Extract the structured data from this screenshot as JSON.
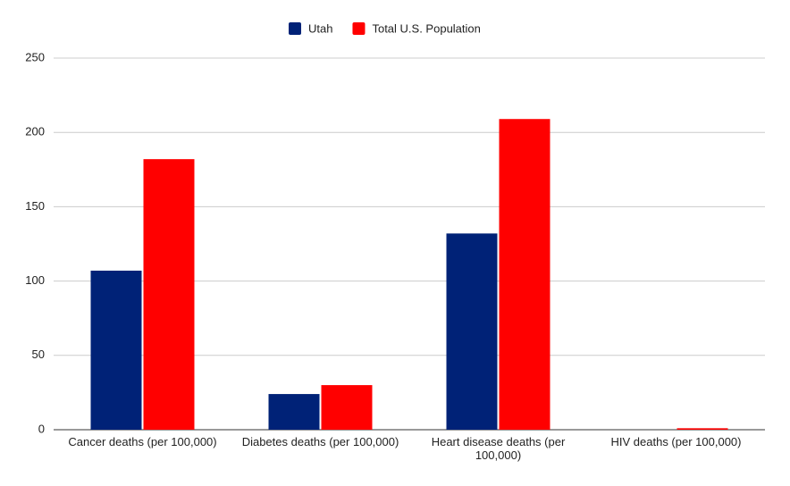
{
  "chart_data": {
    "type": "bar",
    "categories": [
      "Cancer deaths (per 100,000)",
      "Diabetes deaths (per 100,000)",
      "Heart disease deaths (per 100,000)",
      "HIV deaths (per 100,000)"
    ],
    "series": [
      {
        "name": "Utah",
        "color": "#002277",
        "values": [
          107,
          24,
          132,
          0
        ]
      },
      {
        "name": "Total U.S. Population",
        "color": "#ff0000",
        "values": [
          182,
          30,
          209,
          1
        ]
      }
    ],
    "ylim": [
      0,
      250
    ],
    "yticks": [
      0,
      50,
      100,
      150,
      200,
      250
    ],
    "grid": true,
    "legend": "top"
  }
}
